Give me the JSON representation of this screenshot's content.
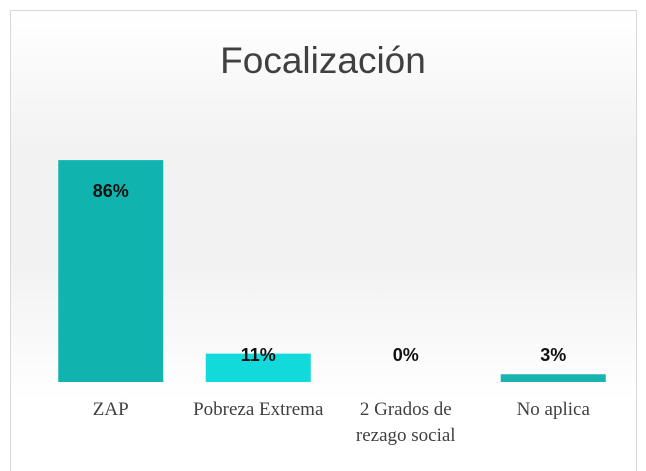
{
  "chart_data": {
    "type": "bar",
    "title": "Focalización",
    "categories": [
      "ZAP",
      "Pobreza Extrema",
      "2 Grados de rezago social",
      "No aplica"
    ],
    "values": [
      86,
      11,
      0,
      3
    ],
    "value_labels": [
      "86%",
      "11%",
      "0%",
      "3%"
    ],
    "colors": [
      "#10b3ad",
      "#12dada",
      "#10b3ad",
      "#19b4b0"
    ]
  }
}
